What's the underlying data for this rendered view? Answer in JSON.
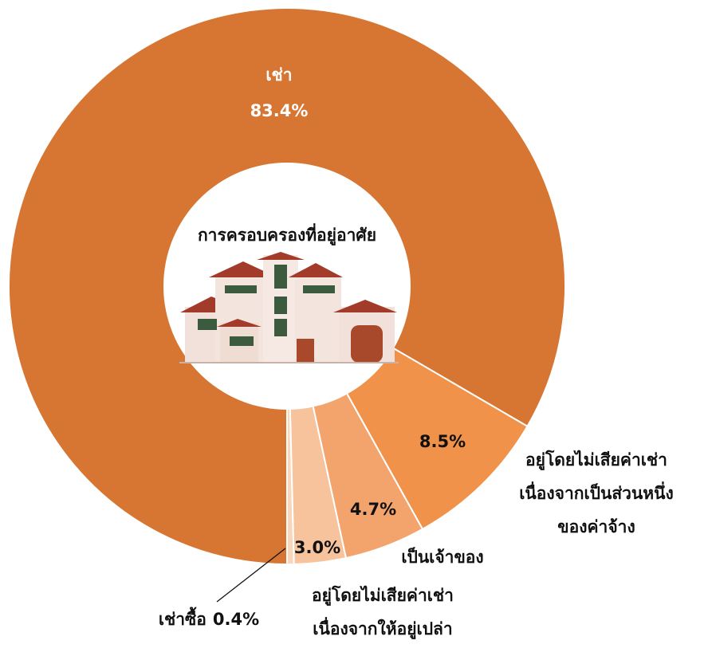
{
  "chart_data": {
    "type": "donut",
    "title": "การครอบครองที่อยู่อาศัย",
    "categories": [
      "เช่า",
      "อยู่โดยไม่เสียค่าเช่า\nเนื่องจากเป็นส่วนหนึ่ง\nของค่าจ้าง",
      "เป็นเจ้าของ",
      "อยู่โดยไม่เสียค่าเช่า\nเนื่องจากให้อยู่เปล่า",
      "เช่าซื้อ"
    ],
    "values": [
      83.4,
      8.5,
      4.7,
      3.0,
      0.4
    ],
    "value_labels": [
      "83.4%",
      "8.5%",
      "4.7%",
      "3.0%",
      "0.4%"
    ],
    "colors": [
      "#d77532",
      "#f0924a",
      "#f3a46d",
      "#f7c39c",
      "#f9d6bb"
    ]
  }
}
